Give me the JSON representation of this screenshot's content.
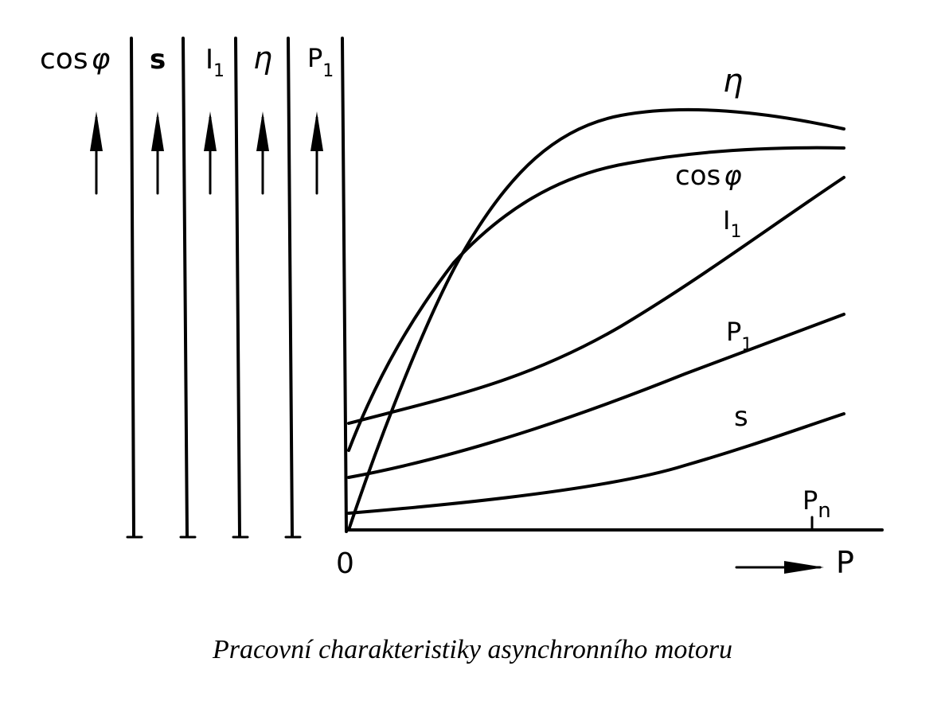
{
  "axis_labels": {
    "cos": {
      "text": "cos",
      "symbol": "φ"
    },
    "s": {
      "text": "s"
    },
    "i1": {
      "text": "I",
      "sub": "1"
    },
    "eta": {
      "text": "η"
    },
    "p1": {
      "text": "P",
      "sub": "1"
    }
  },
  "curve_labels": {
    "eta": {
      "text": "η"
    },
    "cos": {
      "text": "cos",
      "symbol": "φ"
    },
    "i1": {
      "text": "I",
      "sub": "1"
    },
    "p1": {
      "text": "P",
      "sub": "1"
    },
    "s": {
      "text": "s"
    }
  },
  "origin_label": "0",
  "x_axis_label": "P",
  "rated_marker": {
    "text": "P",
    "sub": "n"
  },
  "caption": "Pracovní charakteristiky asynchronního motoru",
  "colors": {
    "ink": "#000000",
    "background": "#ffffff"
  },
  "icons": [
    "up-arrow-icon",
    "right-arrow-icon"
  ]
}
